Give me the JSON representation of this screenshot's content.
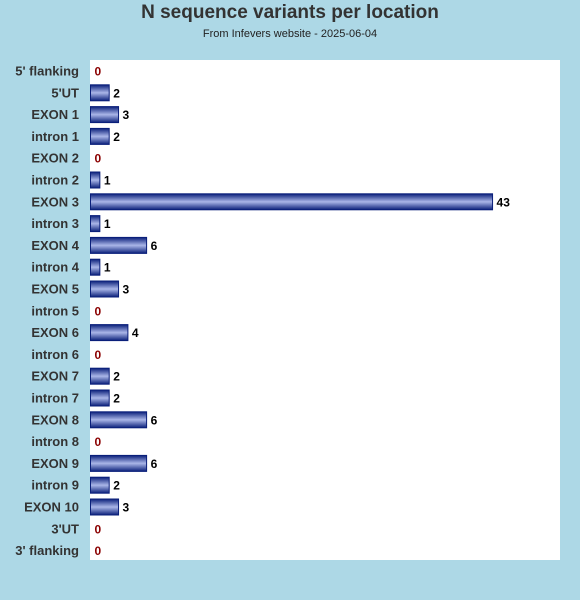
{
  "chart_data": {
    "type": "bar",
    "orientation": "horizontal",
    "title": "N sequence variants per location",
    "subtitle": "From Infevers website - 2025-06-04",
    "categories": [
      "5' flanking",
      "5'UT",
      "EXON 1",
      "intron 1",
      "EXON 2",
      "intron 2",
      "EXON 3",
      "intron 3",
      "EXON 4",
      "intron 4",
      "EXON 5",
      "intron 5",
      "EXON 6",
      "intron 6",
      "EXON 7",
      "intron 7",
      "EXON 8",
      "intron 8",
      "EXON 9",
      "intron 9",
      "EXON 10",
      "3'UT",
      "3' flanking"
    ],
    "values": [
      0,
      2,
      3,
      2,
      0,
      1,
      43,
      1,
      6,
      1,
      3,
      0,
      4,
      0,
      2,
      2,
      6,
      0,
      6,
      2,
      3,
      0,
      0
    ],
    "xlim": [
      0,
      50
    ],
    "grid": false,
    "colors": {
      "background": "#add8e6",
      "plot_background": "#ffffff",
      "bar_dark": "#0a1f7a",
      "bar_light": "#aab6e8",
      "value_label": "#000000",
      "zero_label": "#8b0000"
    }
  }
}
